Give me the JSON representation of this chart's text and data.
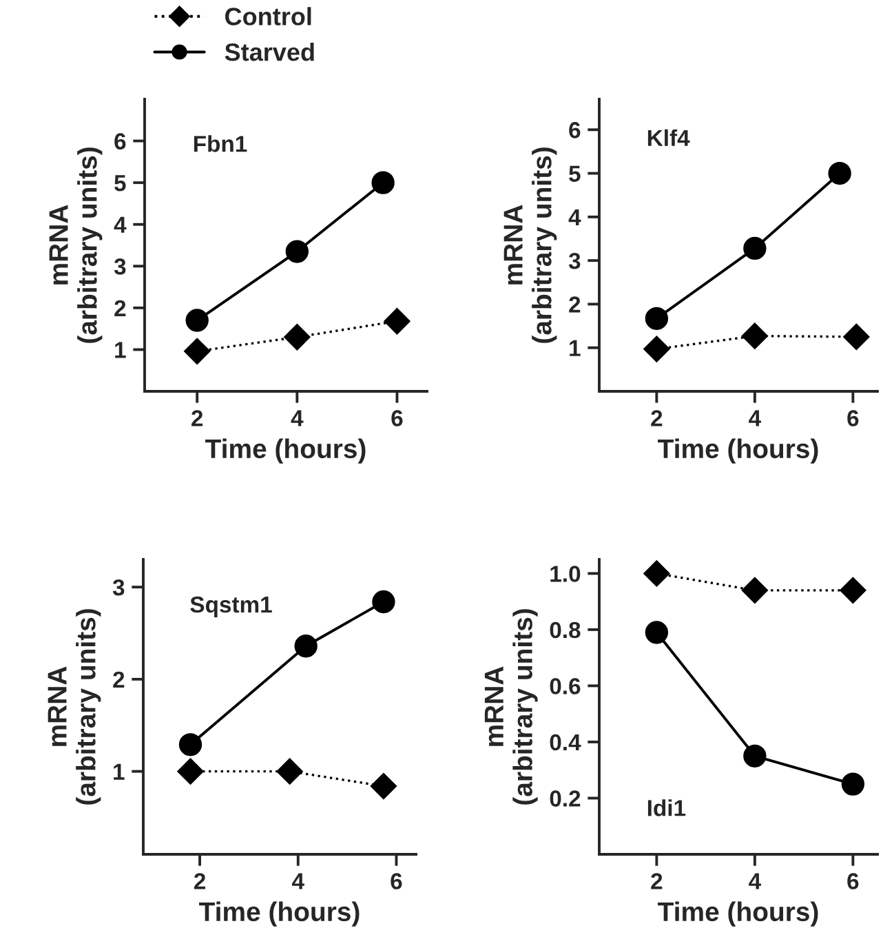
{
  "chart_data": [
    {
      "type": "line",
      "title": "Fbn1",
      "xlabel": "Time (hours)",
      "ylabel": "mRNA\n(arbitrary units)",
      "xlim": [
        0.95,
        6.6
      ],
      "ylim": [
        0,
        7
      ],
      "xticks": [
        2,
        4,
        6
      ],
      "yticks": [
        1,
        2,
        3,
        4,
        5,
        6
      ],
      "grid": false,
      "legend": "top left",
      "series": [
        {
          "name": "Control",
          "color": "#000000",
          "marker": "diamond",
          "line_style": "dotted",
          "x": [
            2,
            4,
            6
          ],
          "values": [
            0.96,
            1.3,
            1.68
          ]
        },
        {
          "name": "Starved",
          "color": "#000000",
          "marker": "circle",
          "line_style": "solid",
          "x": [
            2,
            4,
            5.72
          ],
          "values": [
            1.7,
            3.35,
            5.0
          ]
        }
      ]
    },
    {
      "type": "line",
      "title": "Klf4",
      "xlabel": "Time (hours)",
      "ylabel": "mRNA\n(arbitrary units)",
      "xlim": [
        0.83,
        6.5
      ],
      "ylim": [
        0,
        6.7
      ],
      "xticks": [
        2,
        4,
        6
      ],
      "yticks": [
        1,
        2,
        3,
        4,
        5,
        6
      ],
      "grid": false,
      "series": [
        {
          "color": "#000000",
          "marker": "diamond",
          "line_style": "dotted",
          "x": [
            2,
            4,
            6.07
          ],
          "values": [
            0.97,
            1.27,
            1.25
          ]
        },
        {
          "color": "#000000",
          "marker": "circle",
          "line_style": "solid",
          "x": [
            2,
            4,
            5.73
          ],
          "values": [
            1.67,
            3.28,
            5.0
          ]
        }
      ]
    },
    {
      "type": "line",
      "title": "Sqstm1",
      "xlabel": "Time (hours)",
      "ylabel": "mRNA\n(arbitrary units)",
      "xlim": [
        0.85,
        6.4
      ],
      "ylim": [
        0.1,
        3.3
      ],
      "xticks": [
        2,
        4,
        6
      ],
      "yticks": [
        1,
        2,
        3
      ],
      "grid": false,
      "series": [
        {
          "color": "#000000",
          "marker": "diamond",
          "line_style": "dotted",
          "x": [
            1.81,
            3.83,
            5.74
          ],
          "values": [
            1.0,
            1.0,
            0.84
          ]
        },
        {
          "color": "#000000",
          "marker": "circle",
          "line_style": "solid",
          "x": [
            1.81,
            4.16,
            5.74
          ],
          "values": [
            1.29,
            2.36,
            2.84
          ]
        }
      ]
    },
    {
      "type": "line",
      "title": "Idi1",
      "xlabel": "Time (hours)",
      "ylabel": "mRNA\n(arbitrary units)",
      "xlim": [
        0.83,
        6.5
      ],
      "ylim": [
        0,
        1.05
      ],
      "xticks": [
        2,
        4,
        6
      ],
      "yticks": [
        {
          "value": 0.2,
          "label": "0.2"
        },
        {
          "value": 0.4,
          "label": "0.4"
        },
        {
          "value": 0.6,
          "label": "0.6"
        },
        {
          "value": 0.8,
          "label": "0.8"
        },
        {
          "value": 1.0,
          "label": "1.0"
        }
      ],
      "grid": false,
      "series": [
        {
          "color": "#000000",
          "marker": "diamond",
          "line_style": "dotted",
          "x": [
            2,
            4,
            6
          ],
          "values": [
            1.0,
            0.94,
            0.94
          ]
        },
        {
          "color": "#000000",
          "marker": "circle",
          "line_style": "solid",
          "x": [
            2,
            4,
            6
          ],
          "values": [
            0.79,
            0.35,
            0.25
          ]
        }
      ]
    }
  ]
}
